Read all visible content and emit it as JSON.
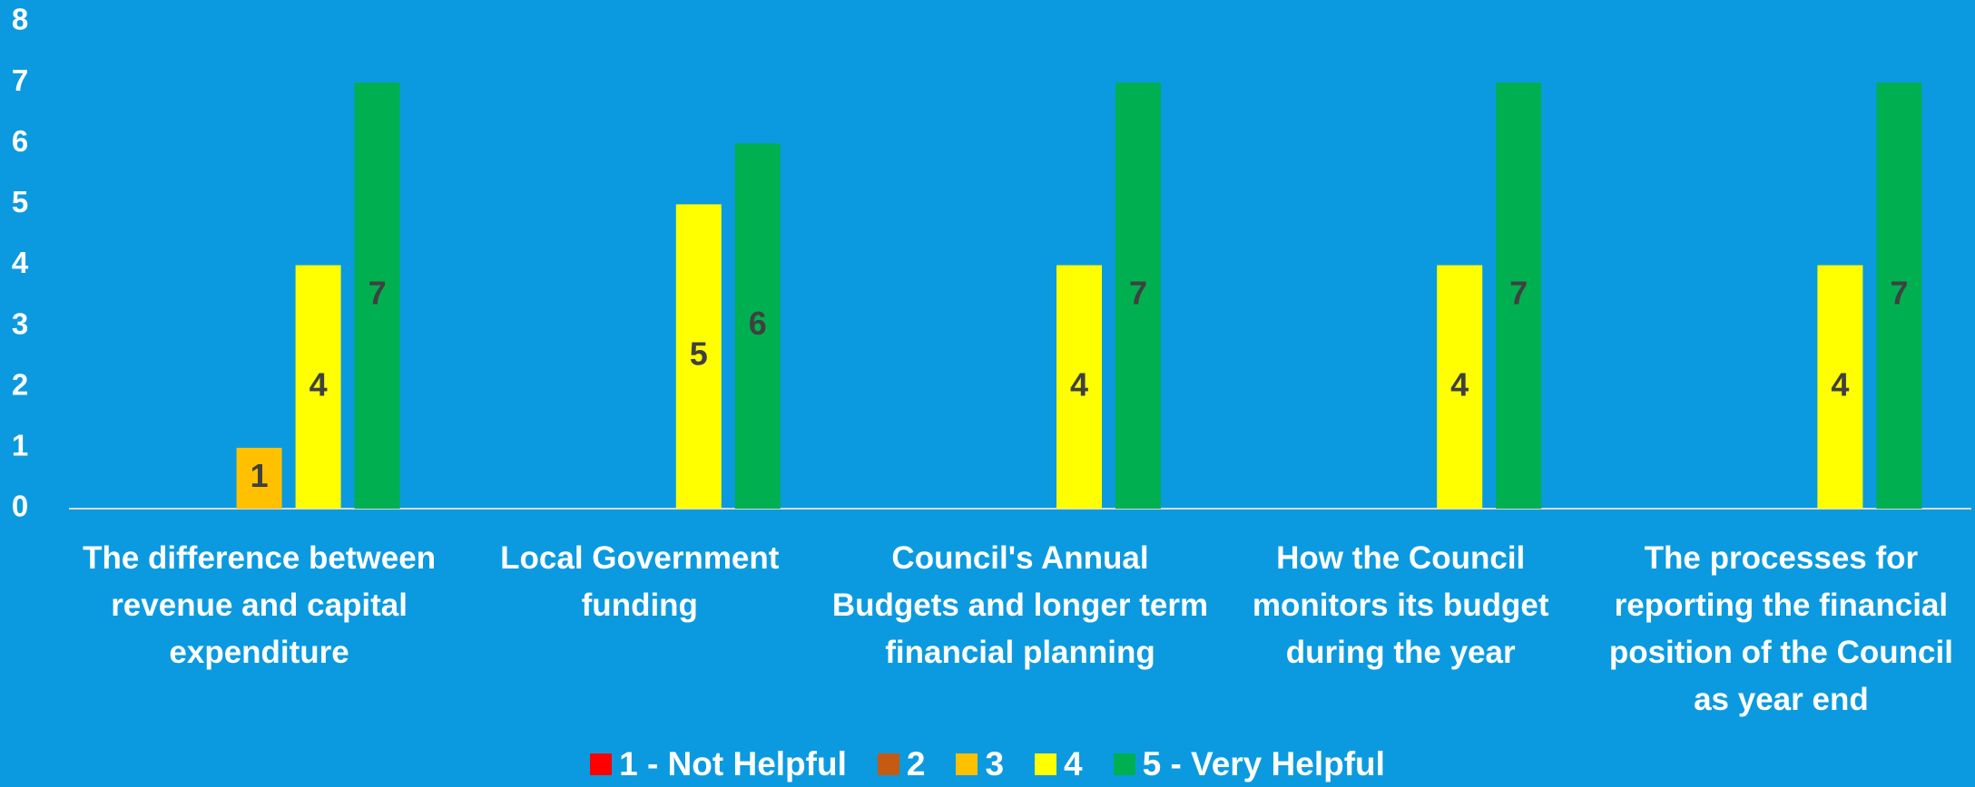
{
  "chart_data": {
    "type": "bar",
    "categories": [
      "The difference between revenue and capital expenditure",
      "Local Government funding",
      "Council's Annual Budgets and longer term financial planning",
      "How the Council monitors its budget during the year",
      "The processes for reporting the financial position of the Council as year end"
    ],
    "series": [
      {
        "name": "1 - Not Helpful",
        "color": "#ff0000",
        "values": [
          0,
          0,
          0,
          0,
          0
        ]
      },
      {
        "name": "2",
        "color": "#c55a11",
        "values": [
          0,
          0,
          0,
          0,
          0
        ]
      },
      {
        "name": "3",
        "color": "#ffc000",
        "values": [
          1,
          0,
          0,
          0,
          0
        ]
      },
      {
        "name": "4",
        "color": "#ffff00",
        "values": [
          4,
          5,
          4,
          4,
          4
        ]
      },
      {
        "name": "5 - Very Helpful",
        "color": "#00b050",
        "values": [
          7,
          6,
          7,
          7,
          7
        ]
      }
    ],
    "ylim": [
      0,
      8
    ],
    "yticks": [
      0,
      1,
      2,
      3,
      4,
      5,
      6,
      7,
      8
    ],
    "grid": false,
    "legend": "bottom"
  }
}
